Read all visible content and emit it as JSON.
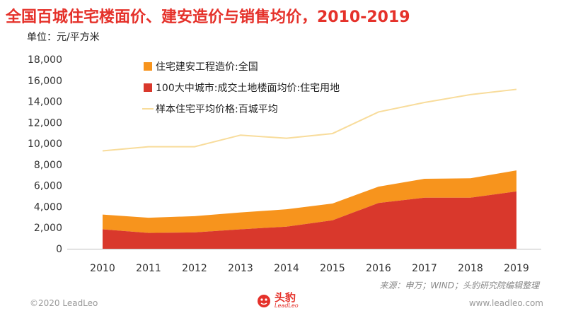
{
  "title": "全国百城住宅楼面价、建安造价与销售均价，2010-2019",
  "unit_label": "单位：元/平方米",
  "source": "来源：申万；WIND；头豹研究院编辑整理",
  "footer": {
    "copyright": "©2020 LeadLeo",
    "website": "www.leadleo.com",
    "logo_text": "头豹",
    "logo_sub": "LeadLeo"
  },
  "colors": {
    "construction": "#f7941d",
    "land": "#d9382c",
    "price": "#f8dc9b",
    "title": "#e5312a",
    "axis": "#bfbfbf"
  },
  "chart_data": {
    "type": "area",
    "categories": [
      "2010",
      "2011",
      "2012",
      "2013",
      "2014",
      "2015",
      "2016",
      "2017",
      "2018",
      "2019"
    ],
    "ylim": [
      0,
      18000
    ],
    "yticks": [
      0,
      2000,
      4000,
      6000,
      8000,
      10000,
      12000,
      14000,
      16000,
      18000
    ],
    "ytick_labels": [
      "0",
      "2,000",
      "4,000",
      "6,000",
      "8,000",
      "10,000",
      "12,000",
      "14,000",
      "16,000",
      "18,000"
    ],
    "stacked": true,
    "grid": false,
    "legend_position": "top-center",
    "series": [
      {
        "name": "100大中城市:成交土地楼面均价:住宅用地",
        "type": "area",
        "color": "#d9382c",
        "values": [
          1850,
          1500,
          1550,
          1850,
          2100,
          2700,
          4350,
          4850,
          4850,
          5450
        ]
      },
      {
        "name": "住宅建安工程造价:全国",
        "type": "area",
        "color": "#f7941d",
        "values": [
          1400,
          1450,
          1550,
          1600,
          1650,
          1600,
          1550,
          1800,
          1850,
          2000
        ]
      },
      {
        "name": "样本住宅平均价格:百城平均",
        "type": "line",
        "color": "#f8dc9b",
        "values": [
          9300,
          9700,
          9700,
          10800,
          10500,
          10950,
          13000,
          13900,
          14650,
          15150
        ]
      }
    ],
    "legend": [
      {
        "label": "住宅建安工程造价:全国",
        "marker": "square",
        "color": "#f7941d"
      },
      {
        "label": "100大中城市:成交土地楼面均价:住宅用地",
        "marker": "square",
        "color": "#d9382c"
      },
      {
        "label": "样本住宅平均价格:百城平均",
        "marker": "line",
        "color": "#f8dc9b"
      }
    ]
  }
}
